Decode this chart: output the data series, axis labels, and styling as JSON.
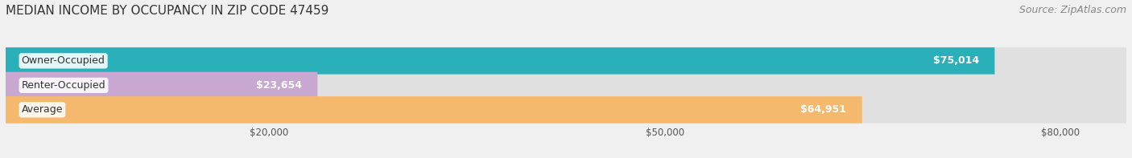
{
  "title": "MEDIAN INCOME BY OCCUPANCY IN ZIP CODE 47459",
  "source": "Source: ZipAtlas.com",
  "categories": [
    "Owner-Occupied",
    "Renter-Occupied",
    "Average"
  ],
  "values": [
    75014,
    23654,
    64951
  ],
  "bar_colors": [
    "#2ab0b8",
    "#c8a8d0",
    "#f5b96e"
  ],
  "bar_labels": [
    "$75,014",
    "$23,654",
    "$64,951"
  ],
  "xlim": [
    0,
    85000
  ],
  "xticks": [
    20000,
    50000,
    80000
  ],
  "xticklabels": [
    "$20,000",
    "$50,000",
    "$80,000"
  ],
  "bg_color": "#f0f0f0",
  "bar_bg_color": "#e0e0e0",
  "title_fontsize": 11,
  "source_fontsize": 9,
  "bar_height": 0.55,
  "bar_value_fontsize": 9,
  "category_fontsize": 9
}
